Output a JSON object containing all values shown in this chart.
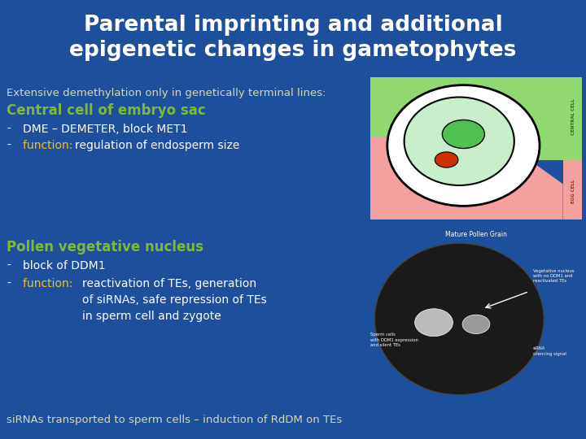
{
  "background_color": "#1c4f9c",
  "title_lines": [
    "Parental imprinting and additional",
    "epigenetic changes in gametophytes"
  ],
  "title_color": "#ffffff",
  "title_fontsize": 20,
  "subtitle1_color": "#d8d8b0",
  "subtitle1": "Extensive demethylation only in genetically terminal lines:",
  "header1_color": "#7cba3c",
  "header1": "Central cell of embryo sac",
  "bullet_color": "#ffffff",
  "bullet1a": "DME – DEMETER, block MET1",
  "bullet1b_prefix": "function: ",
  "bullet1b_prefix_color": "#f0c020",
  "bullet1b_rest": "regulation of endosperm size",
  "header2_color": "#7cba3c",
  "header2": "Pollen vegetative nucleus",
  "bullet2a": "block of DDM1",
  "bullet2b_prefix": "function:  ",
  "bullet2b_prefix_color": "#f0c020",
  "bullet2b_line1": "reactivation of TEs, generation",
  "bullet2b_line2": "of siRNAs, safe repression of TEs",
  "bullet2b_line3": "in sperm cell and zygote",
  "footer_color": "#d8d8b0",
  "footer": "siRNAs transported to sperm cells – induction of RdDM on TEs"
}
